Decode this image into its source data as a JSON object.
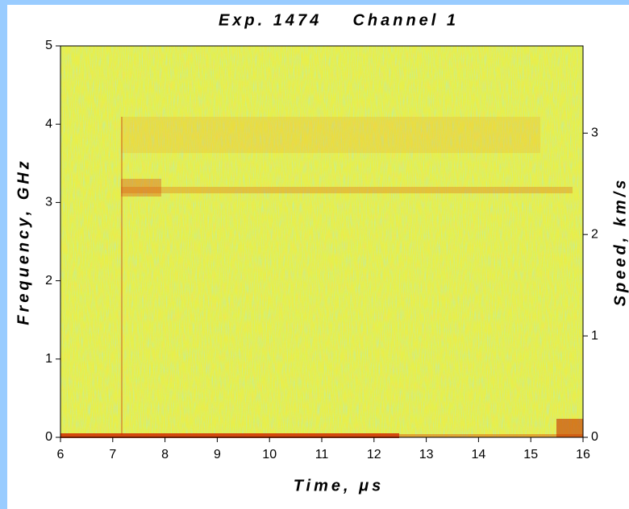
{
  "chart_data": {
    "type": "spectrogram",
    "title": "Exp. 1474    Channel 1",
    "xlabel": "Time, μs",
    "ylabel": "Frequency, GHz",
    "y2label": "Speed, km/s",
    "xlim": [
      6,
      16
    ],
    "xticks": [
      6,
      7,
      8,
      9,
      10,
      11,
      12,
      13,
      14,
      15,
      16
    ],
    "ylim": [
      0,
      5
    ],
    "yticks": [
      0,
      1,
      2,
      3,
      4,
      5
    ],
    "y2lim": [
      0,
      3.86
    ],
    "y2ticks": [
      0,
      1,
      2,
      3
    ]
  }
}
